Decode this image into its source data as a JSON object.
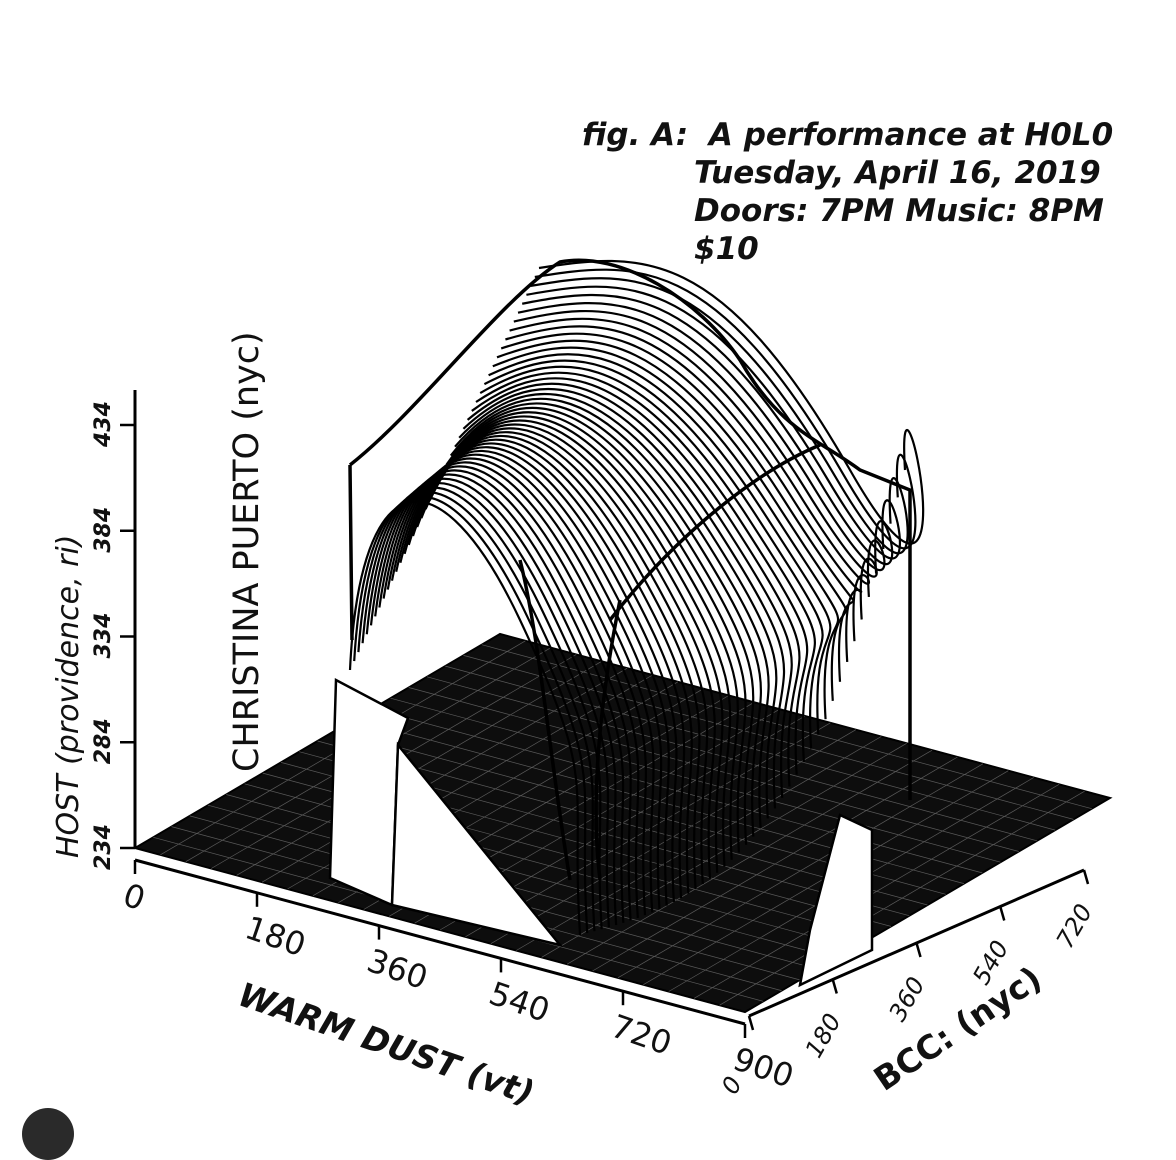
{
  "caption": {
    "fig_label": "fig. A:",
    "title": "A performance at H0L0",
    "date": "Tuesday, April 16, 2019",
    "times": "Doors: 7PM Music: 8PM",
    "price": "$10"
  },
  "chart_data": {
    "type": "3d-surface",
    "title": "fig. A:  A performance at H0L0",
    "zlabel": "HOST (providence, ri)",
    "headliner_label": "CHRISTINA PUERTO (nyc)",
    "xlabel": "WARM DUST (vt)",
    "ylabel": "BCC: (nyc)",
    "x_ticks": [
      "0",
      "180",
      "360",
      "540",
      "720",
      "900"
    ],
    "y_ticks": [
      "0",
      "180",
      "360",
      "540",
      "720"
    ],
    "z_ticks": [
      "234",
      "284",
      "334",
      "384",
      "434"
    ],
    "xlim": [
      0,
      900
    ],
    "ylim": [
      0,
      720
    ],
    "zlim": [
      234,
      434
    ],
    "style": "black-and-white stacked contour slices on a black floor grid"
  }
}
